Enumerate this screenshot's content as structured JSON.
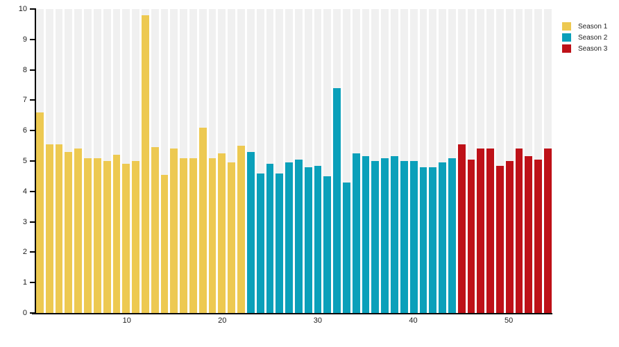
{
  "chart_data": {
    "type": "bar",
    "title": "",
    "xlabel": "",
    "ylabel": "",
    "ylim": [
      0,
      10
    ],
    "yticks": [
      0,
      1,
      2,
      3,
      4,
      5,
      6,
      7,
      8,
      9,
      10
    ],
    "xticks": [
      10,
      20,
      30,
      40,
      50
    ],
    "total_bars": 54,
    "grid": false,
    "legend_position": "top-right",
    "background_bar_color": "#F0F0F0",
    "axis_color": "#000000",
    "series": [
      {
        "name": "Season 1",
        "color": "#EDC951",
        "start_episode": 1,
        "values": [
          6.6,
          5.55,
          5.55,
          5.3,
          5.4,
          5.1,
          5.1,
          5.0,
          5.2,
          4.9,
          5.0,
          9.8,
          5.45,
          4.55,
          5.4,
          5.1,
          5.1,
          6.1,
          5.1,
          5.25,
          4.95,
          5.5
        ]
      },
      {
        "name": "Season 2",
        "color": "#0BA0BA",
        "start_episode": 23,
        "values": [
          5.3,
          4.6,
          4.9,
          4.6,
          4.95,
          5.05,
          4.8,
          4.85,
          4.5,
          7.4,
          4.3,
          5.25,
          5.15,
          5.0,
          5.1,
          5.15,
          5.0,
          5.0,
          4.8,
          4.8,
          4.95,
          5.1
        ]
      },
      {
        "name": "Season 3",
        "color": "#BE1118",
        "start_episode": 45,
        "values": [
          5.55,
          5.05,
          5.4,
          5.4,
          4.85,
          5.0,
          5.4,
          5.15,
          5.05,
          5.4
        ]
      }
    ]
  },
  "legend": {
    "items": [
      {
        "label": "Season 1",
        "color": "#EDC951"
      },
      {
        "label": "Season 2",
        "color": "#0BA0BA"
      },
      {
        "label": "Season 3",
        "color": "#BE1118"
      }
    ]
  }
}
